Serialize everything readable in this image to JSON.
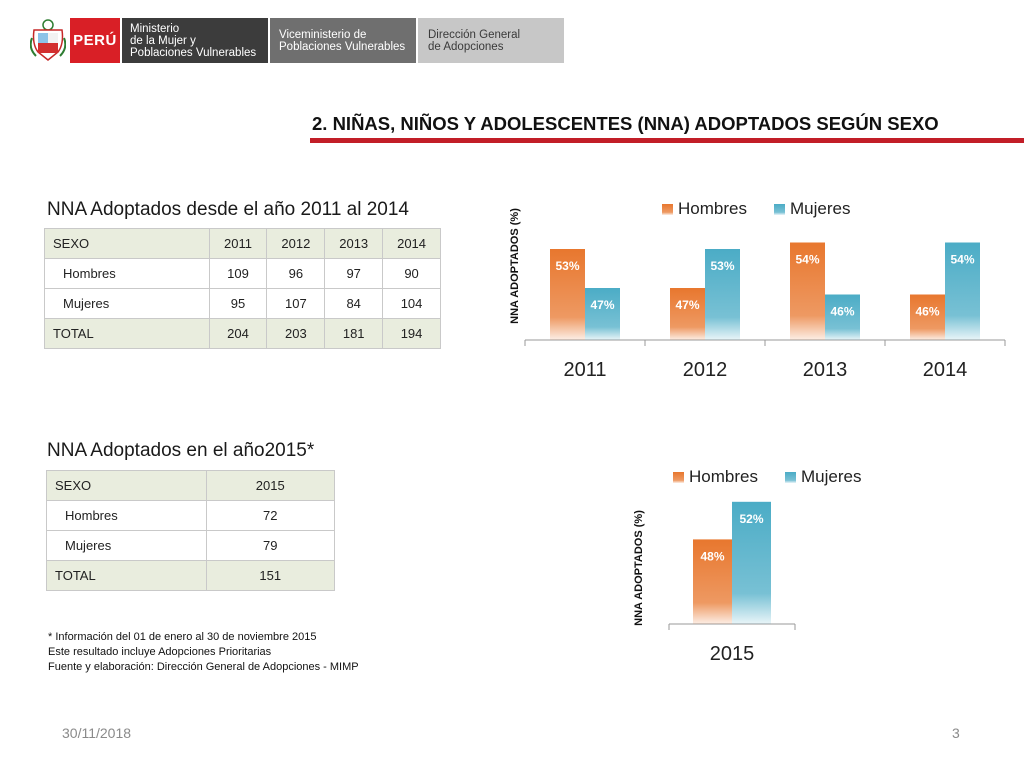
{
  "header": {
    "country": "PERÚ",
    "ministry": [
      "Ministerio",
      "de la Mujer y",
      "Poblaciones Vulnerables"
    ],
    "vice_ministry": [
      "Viceministerio de",
      "Poblaciones Vulnerables"
    ],
    "directorate": [
      "Dirección General",
      "de Adopciones"
    ]
  },
  "section_title": "2. NIÑAS, NIÑOS Y ADOLESCENTES (NNA) ADOPTADOS SEGÚN SEXO",
  "table1": {
    "title": "NNA Adoptados desde el año 2011 al 2014",
    "headers": [
      "SEXO",
      "2011",
      "2012",
      "2013",
      "2014"
    ],
    "rows": [
      [
        "Hombres",
        "109",
        "96",
        "97",
        "90"
      ],
      [
        "Mujeres",
        "95",
        "107",
        "84",
        "104"
      ],
      [
        "TOTAL",
        "204",
        "203",
        "181",
        "194"
      ]
    ]
  },
  "table2": {
    "title": "NNA Adoptados en el año2015*",
    "headers": [
      "SEXO",
      "2015"
    ],
    "rows": [
      [
        "Hombres",
        "72"
      ],
      [
        "Mujeres",
        "79"
      ],
      [
        "TOTAL",
        "151"
      ]
    ]
  },
  "notes": [
    "* Información del  01 de enero al 30 de noviembre 2015",
    "Este resultado incluye Adopciones Prioritarias",
    "Fuente y elaboración: Dirección General de Adopciones - MIMP"
  ],
  "footer": {
    "date": "30/11/2018",
    "page": "3"
  },
  "colors": {
    "hombres": "#e8772e",
    "mujeres": "#4bacc6",
    "accent_red": "#c21e28",
    "table_highlight": "#e9edde"
  },
  "chart_data": [
    {
      "type": "bar",
      "categories": [
        "2011",
        "2012",
        "2013",
        "2014"
      ],
      "series": [
        {
          "name": "Hombres",
          "values": [
            53,
            47,
            54,
            46
          ],
          "labels": [
            "53%",
            "47%",
            "54%",
            "46%"
          ]
        },
        {
          "name": "Mujeres",
          "values": [
            47,
            53,
            46,
            54
          ],
          "labels": [
            "47%",
            "53%",
            "46%",
            "54%"
          ]
        }
      ],
      "ylabel": "NNA ADOPTADOS (%)",
      "legend": "top",
      "grid": false
    },
    {
      "type": "bar",
      "categories": [
        "2015"
      ],
      "series": [
        {
          "name": "Hombres",
          "values": [
            48
          ],
          "labels": [
            "48%"
          ]
        },
        {
          "name": "Mujeres",
          "values": [
            52
          ],
          "labels": [
            "52%"
          ]
        }
      ],
      "ylabel": "NNA ADOPTADOS (%)",
      "legend": "top",
      "grid": false
    }
  ]
}
